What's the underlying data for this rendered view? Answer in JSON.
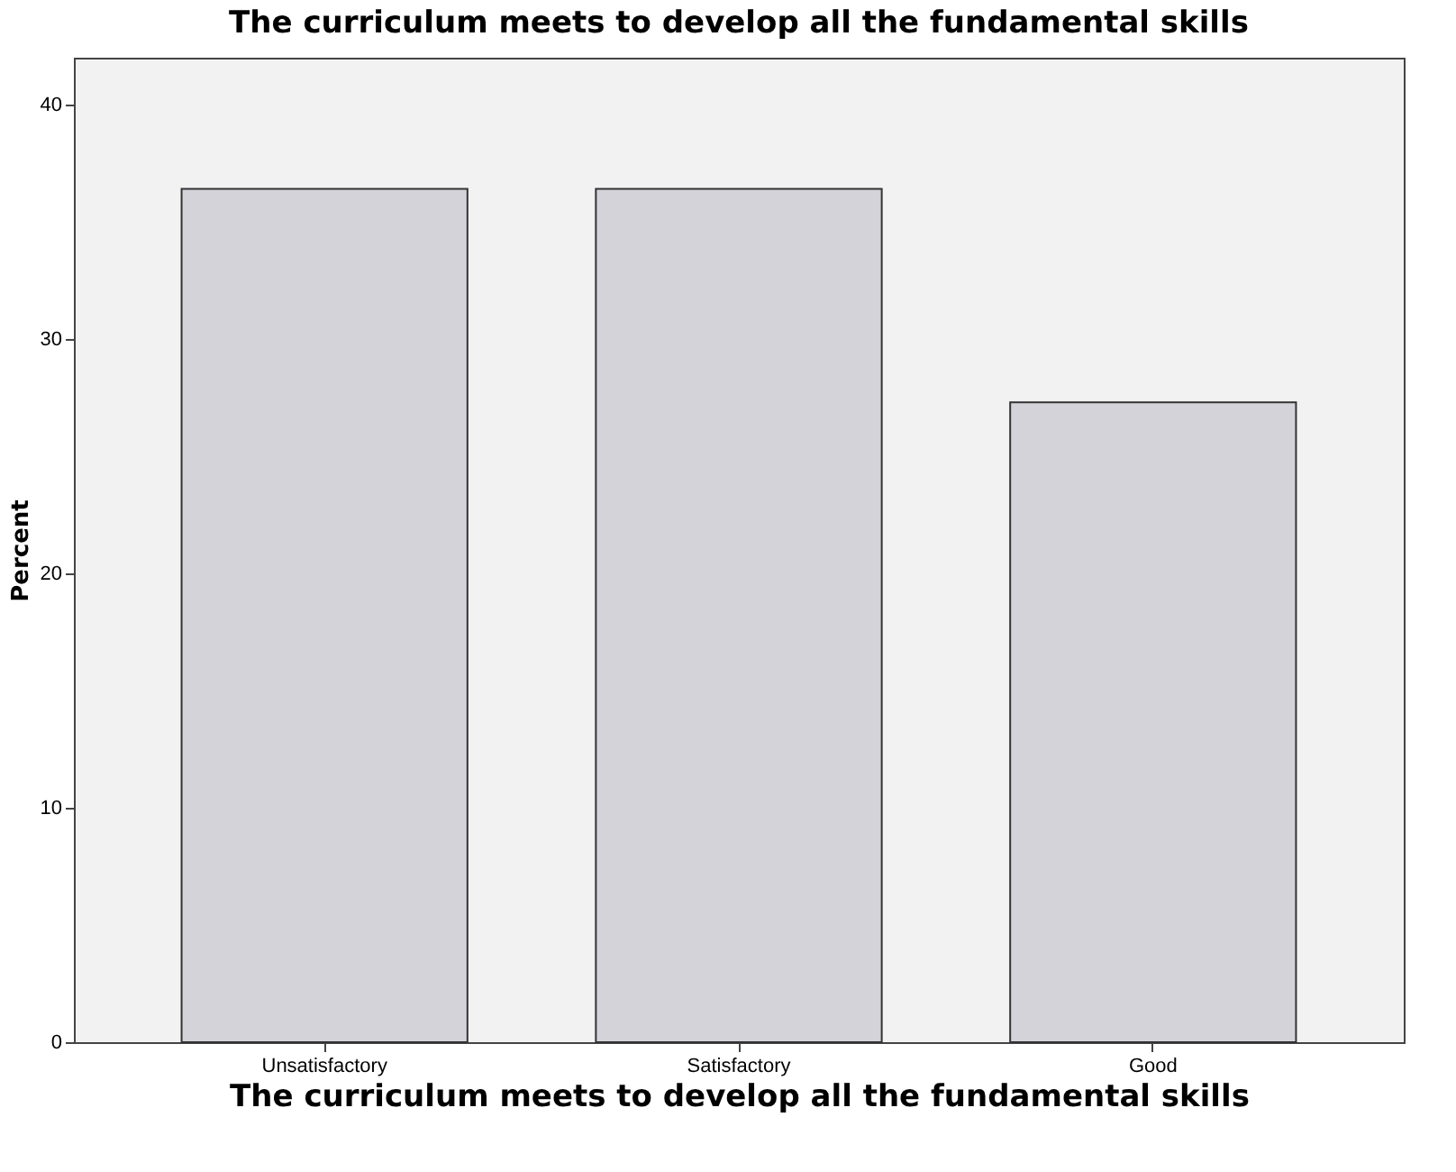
{
  "chart_data": {
    "type": "bar",
    "title": "The curriculum meets to develop all the fundamental skills",
    "xlabel": "The curriculum meets to develop all the fundamental skills",
    "ylabel": "Percent",
    "categories": [
      "Unsatisfactory",
      "Satisfactory",
      "Good"
    ],
    "values": [
      36.4,
      36.4,
      27.3
    ],
    "color": "#d4d3da",
    "ylim": [
      0,
      42
    ],
    "yticks": [
      0,
      10,
      20,
      30,
      40
    ],
    "grid": false
  }
}
